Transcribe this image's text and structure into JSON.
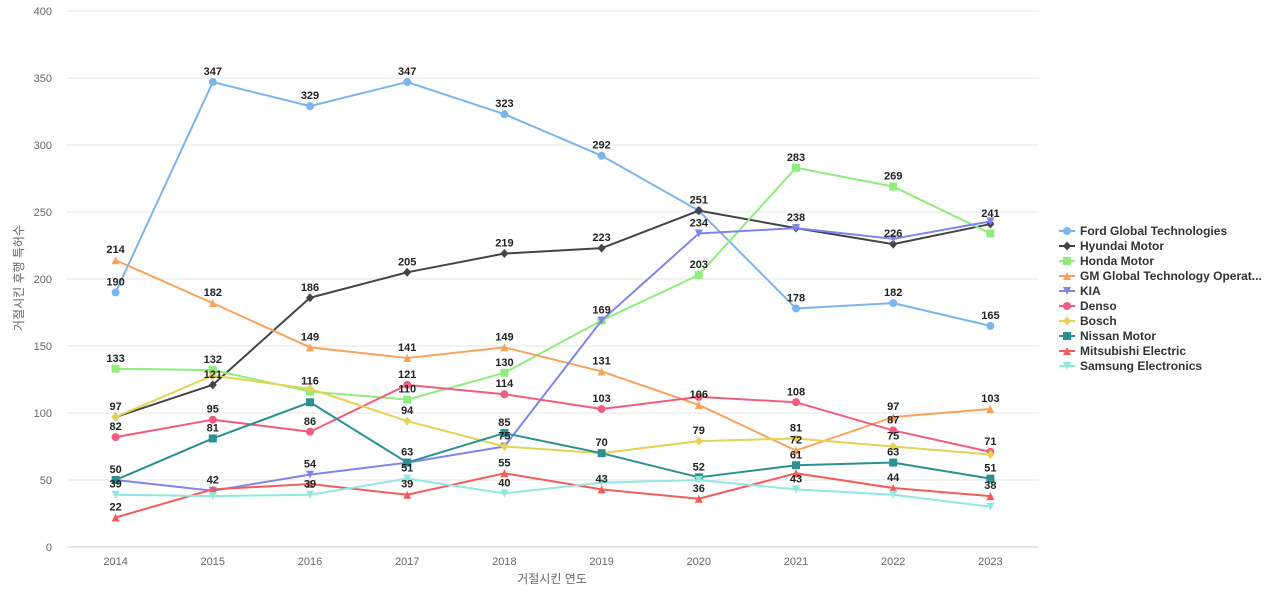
{
  "chart_data": {
    "type": "line",
    "title": "",
    "xlabel": "거절시킨 연도",
    "ylabel": "거절시킨 후행 특허수",
    "ylim": [
      0,
      400
    ],
    "yticks": [
      0,
      50,
      100,
      150,
      200,
      250,
      300,
      350,
      400
    ],
    "grid": true,
    "legend": "right",
    "categories": [
      "2014",
      "2015",
      "2016",
      "2017",
      "2018",
      "2019",
      "2020",
      "2021",
      "2022",
      "2023"
    ],
    "series": [
      {
        "name": "Ford Global Technologies",
        "color": "#7cb5ec",
        "marker": "circle",
        "values": [
          190,
          347,
          329,
          347,
          323,
          292,
          251,
          178,
          182,
          165
        ]
      },
      {
        "name": "Hyundai Motor",
        "color": "#434348",
        "marker": "diamond",
        "values": [
          97,
          121,
          186,
          205,
          219,
          223,
          251,
          238,
          226,
          241
        ]
      },
      {
        "name": "Honda Motor",
        "color": "#90ed7d",
        "marker": "square",
        "values": [
          133,
          132,
          116,
          110,
          130,
          169,
          203,
          283,
          269,
          234
        ]
      },
      {
        "name": "GM Global Technology Operat...",
        "color": "#f7a35c",
        "marker": "triangle",
        "values": [
          214,
          182,
          149,
          141,
          149,
          131,
          106,
          72,
          97,
          103
        ]
      },
      {
        "name": "KIA",
        "color": "#8085e9",
        "marker": "triangle-down",
        "values": [
          50,
          42,
          54,
          63,
          75,
          169,
          234,
          238,
          230,
          243
        ]
      },
      {
        "name": "Denso",
        "color": "#f15c80",
        "marker": "circle",
        "values": [
          82,
          95,
          86,
          121,
          114,
          103,
          112,
          108,
          87,
          71
        ]
      },
      {
        "name": "Bosch",
        "color": "#e4d354",
        "marker": "diamond",
        "values": [
          97,
          128,
          118,
          94,
          75,
          70,
          79,
          81,
          75,
          69
        ]
      },
      {
        "name": "Nissan Motor",
        "color": "#2b908f",
        "marker": "square",
        "values": [
          50,
          81,
          108,
          63,
          85,
          70,
          52,
          61,
          63,
          51
        ]
      },
      {
        "name": "Mitsubishi Electric",
        "color": "#f45b5b",
        "marker": "triangle",
        "values": [
          22,
          43,
          47,
          39,
          55,
          43,
          36,
          55,
          44,
          38
        ]
      },
      {
        "name": "Samsung Electronics",
        "color": "#91e8e1",
        "marker": "triangle-down",
        "values": [
          39,
          38,
          39,
          51,
          40,
          48,
          50,
          43,
          39,
          30
        ]
      }
    ],
    "data_labels": [
      {
        "text": "347",
        "x": "2015",
        "y": 347
      },
      {
        "text": "329",
        "x": "2016",
        "y": 329
      },
      {
        "text": "347",
        "x": "2017",
        "y": 347
      },
      {
        "text": "323",
        "x": "2018",
        "y": 323
      },
      {
        "text": "292",
        "x": "2019",
        "y": 292
      },
      {
        "text": "283",
        "x": "2021",
        "y": 283
      },
      {
        "text": "269",
        "x": "2022",
        "y": 269
      },
      {
        "text": "251",
        "x": "2020",
        "y": 251
      },
      {
        "text": "241",
        "x": "2023",
        "y": 241
      },
      {
        "text": "238",
        "x": "2021",
        "y": 238
      },
      {
        "text": "226",
        "x": "2022",
        "y": 226
      },
      {
        "text": "234",
        "x": "2020",
        "y": 234
      },
      {
        "text": "223",
        "x": "2019",
        "y": 223
      },
      {
        "text": "219",
        "x": "2018",
        "y": 219
      },
      {
        "text": "214",
        "x": "2014",
        "y": 214
      },
      {
        "text": "205",
        "x": "2017",
        "y": 205
      },
      {
        "text": "203",
        "x": "2020",
        "y": 203
      },
      {
        "text": "190",
        "x": "2014",
        "y": 190
      },
      {
        "text": "186",
        "x": "2016",
        "y": 186
      },
      {
        "text": "182",
        "x": "2015",
        "y": 182
      },
      {
        "text": "182",
        "x": "2022",
        "y": 182
      },
      {
        "text": "178",
        "x": "2021",
        "y": 178
      },
      {
        "text": "169",
        "x": "2019",
        "y": 169
      },
      {
        "text": "165",
        "x": "2023",
        "y": 165
      },
      {
        "text": "149",
        "x": "2016",
        "y": 149
      },
      {
        "text": "149",
        "x": "2018",
        "y": 149
      },
      {
        "text": "141",
        "x": "2017",
        "y": 141
      },
      {
        "text": "133",
        "x": "2014",
        "y": 133
      },
      {
        "text": "132",
        "x": "2015",
        "y": 132
      },
      {
        "text": "131",
        "x": "2019",
        "y": 131
      },
      {
        "text": "130",
        "x": "2018",
        "y": 130
      },
      {
        "text": "121",
        "x": "2015",
        "y": 121
      },
      {
        "text": "121",
        "x": "2017",
        "y": 121
      },
      {
        "text": "116",
        "x": "2016",
        "y": 116
      },
      {
        "text": "114",
        "x": "2018",
        "y": 114
      },
      {
        "text": "110",
        "x": "2017",
        "y": 110
      },
      {
        "text": "108",
        "x": "2021",
        "y": 108
      },
      {
        "text": "106",
        "x": "2020",
        "y": 106
      },
      {
        "text": "103",
        "x": "2019",
        "y": 103
      },
      {
        "text": "103",
        "x": "2023",
        "y": 103
      },
      {
        "text": "97",
        "x": "2014",
        "y": 97
      },
      {
        "text": "97",
        "x": "2022",
        "y": 97
      },
      {
        "text": "95",
        "x": "2015",
        "y": 95
      },
      {
        "text": "94",
        "x": "2017",
        "y": 94
      },
      {
        "text": "87",
        "x": "2022",
        "y": 87
      },
      {
        "text": "86",
        "x": "2016",
        "y": 86
      },
      {
        "text": "85",
        "x": "2018",
        "y": 85
      },
      {
        "text": "82",
        "x": "2014",
        "y": 82
      },
      {
        "text": "81",
        "x": "2015",
        "y": 81
      },
      {
        "text": "81",
        "x": "2021",
        "y": 81
      },
      {
        "text": "79",
        "x": "2020",
        "y": 79
      },
      {
        "text": "75",
        "x": "2018",
        "y": 75
      },
      {
        "text": "75",
        "x": "2022",
        "y": 75
      },
      {
        "text": "72",
        "x": "2021",
        "y": 72
      },
      {
        "text": "71",
        "x": "2023",
        "y": 71
      },
      {
        "text": "70",
        "x": "2019",
        "y": 70
      },
      {
        "text": "63",
        "x": "2017",
        "y": 63
      },
      {
        "text": "63",
        "x": "2022",
        "y": 63
      },
      {
        "text": "61",
        "x": "2021",
        "y": 61
      },
      {
        "text": "55",
        "x": "2018",
        "y": 55
      },
      {
        "text": "54",
        "x": "2016",
        "y": 54
      },
      {
        "text": "52",
        "x": "2020",
        "y": 52
      },
      {
        "text": "51",
        "x": "2017",
        "y": 51
      },
      {
        "text": "51",
        "x": "2023",
        "y": 51
      },
      {
        "text": "50",
        "x": "2014",
        "y": 50
      },
      {
        "text": "44",
        "x": "2022",
        "y": 44
      },
      {
        "text": "43",
        "x": "2019",
        "y": 43
      },
      {
        "text": "43",
        "x": "2021",
        "y": 43
      },
      {
        "text": "42",
        "x": "2015",
        "y": 42
      },
      {
        "text": "40",
        "x": "2018",
        "y": 40
      },
      {
        "text": "39",
        "x": "2014",
        "y": 39
      },
      {
        "text": "39",
        "x": "2016",
        "y": 39
      },
      {
        "text": "39",
        "x": "2017",
        "y": 39
      },
      {
        "text": "38",
        "x": "2023",
        "y": 38
      },
      {
        "text": "36",
        "x": "2020",
        "y": 36
      },
      {
        "text": "22",
        "x": "2014",
        "y": 22
      }
    ]
  }
}
